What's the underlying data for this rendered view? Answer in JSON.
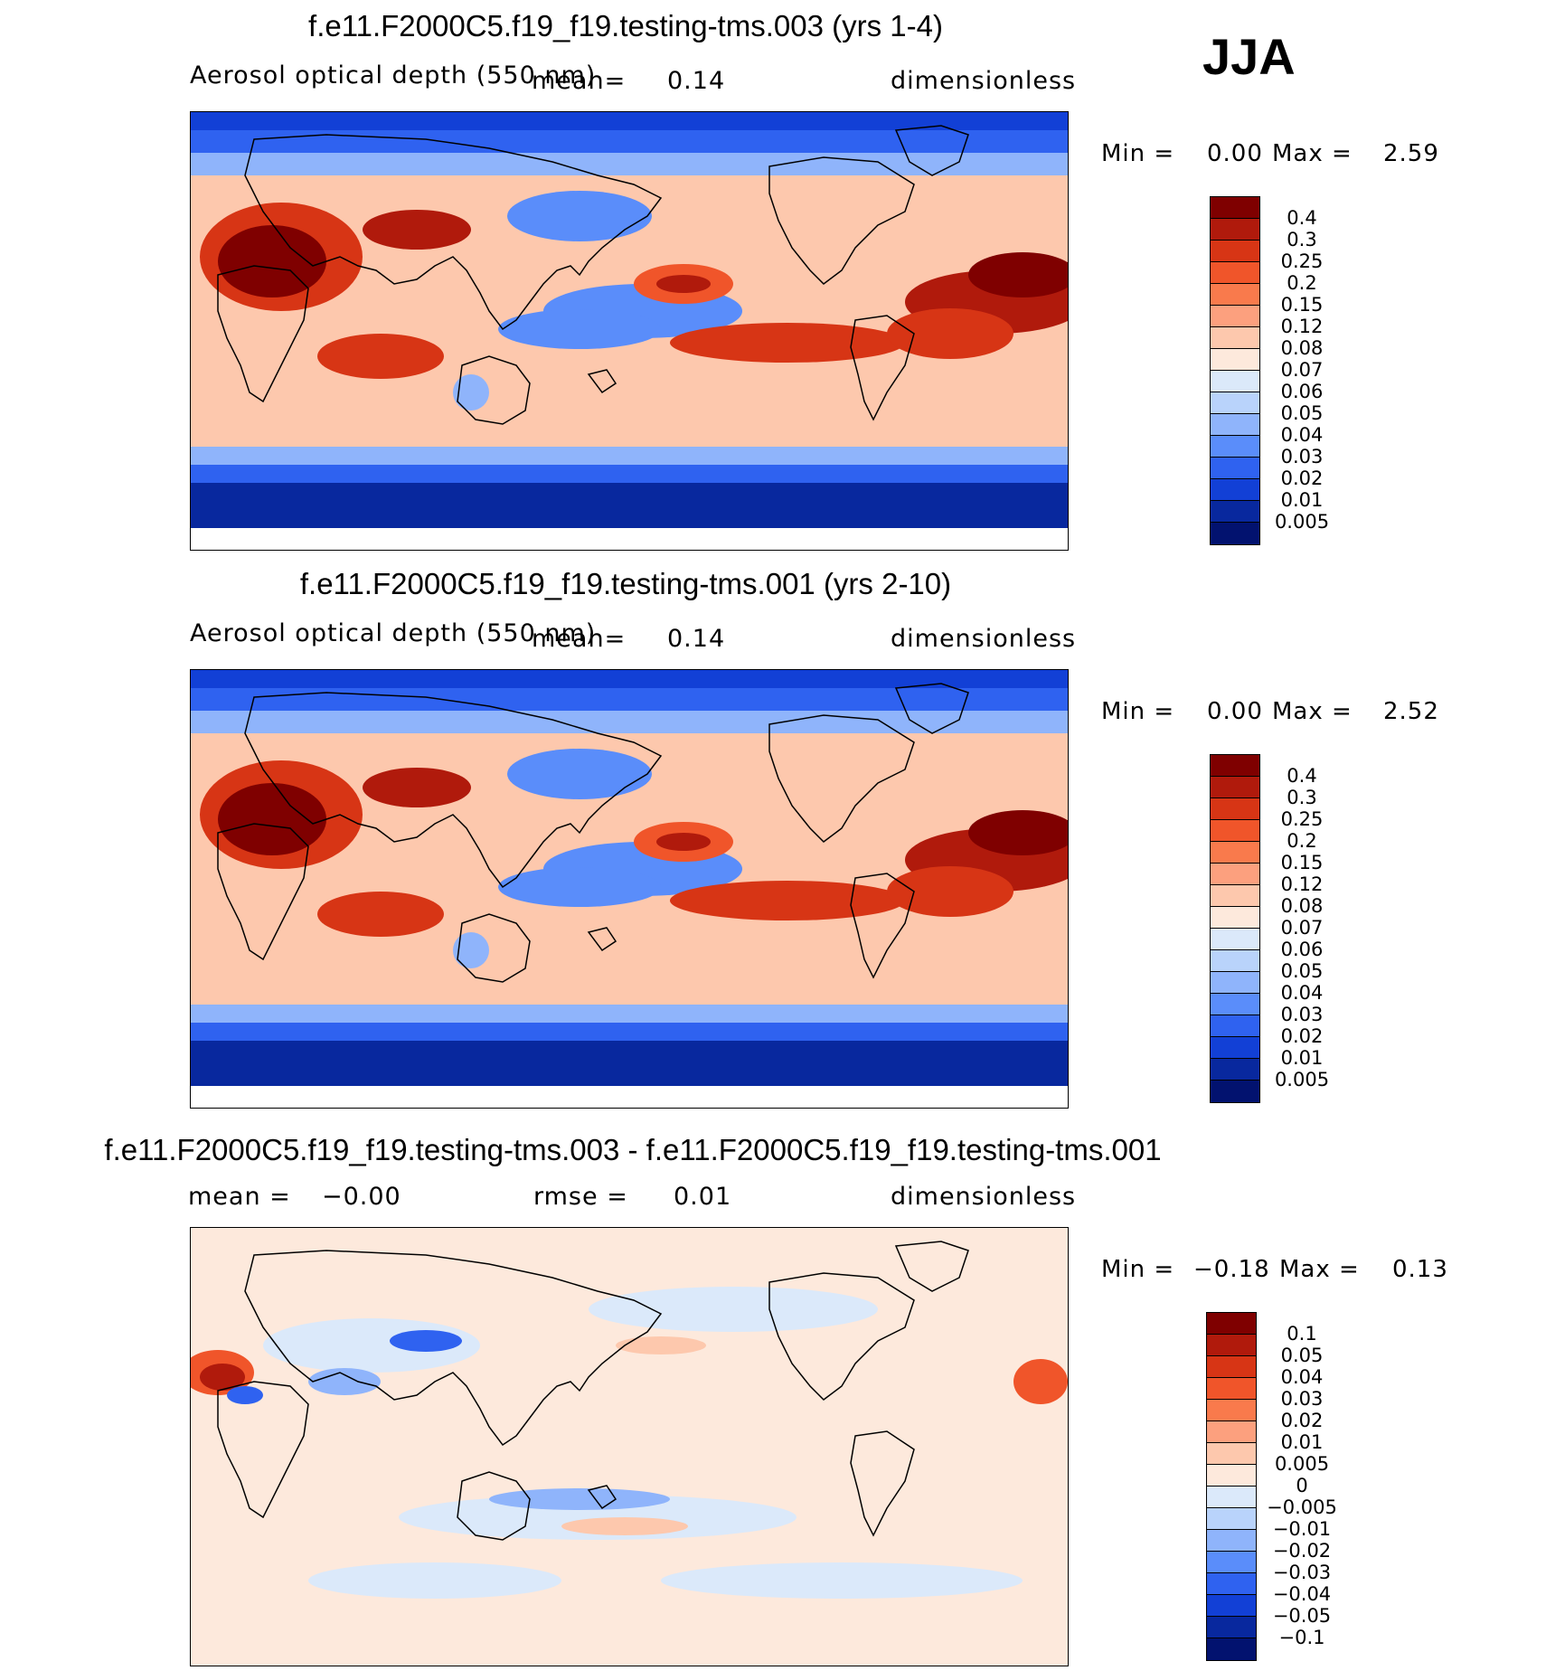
{
  "season": "JJA",
  "panels": [
    {
      "title": "f.e11.F2000C5.f19_f19.testing-tms.003 (yrs 1-4)",
      "variable": "Aerosol optical depth (550 nm)",
      "mean_label": "mean=",
      "mean_value": "0.14",
      "units": "dimensionless",
      "min_label": "Min =",
      "min_value": "0.00",
      "max_label": "Max =",
      "max_value": "2.59",
      "colorbar_labels": [
        "0.4",
        "0.3",
        "0.25",
        "0.2",
        "0.15",
        "0.12",
        "0.08",
        "0.07",
        "0.06",
        "0.05",
        "0.04",
        "0.03",
        "0.02",
        "0.01",
        "0.005"
      ],
      "colorbar_colors": [
        "#7f0000",
        "#b01a0c",
        "#d73515",
        "#f0552a",
        "#f97a4c",
        "#fca07e",
        "#fdc8ad",
        "#fde9dc",
        "#dbe9fa",
        "#b9d3fb",
        "#8fb4fb",
        "#5a8dfa",
        "#2f62f0",
        "#1240d6",
        "#08289e",
        "#02126f"
      ],
      "shading": "aod"
    },
    {
      "title": "f.e11.F2000C5.f19_f19.testing-tms.001 (yrs 2-10)",
      "variable": "Aerosol optical depth (550 nm)",
      "mean_label": "mean=",
      "mean_value": "0.14",
      "units": "dimensionless",
      "min_label": "Min =",
      "min_value": "0.00",
      "max_label": "Max =",
      "max_value": "2.52",
      "colorbar_labels": [
        "0.4",
        "0.3",
        "0.25",
        "0.2",
        "0.15",
        "0.12",
        "0.08",
        "0.07",
        "0.06",
        "0.05",
        "0.04",
        "0.03",
        "0.02",
        "0.01",
        "0.005"
      ],
      "colorbar_colors": [
        "#7f0000",
        "#b01a0c",
        "#d73515",
        "#f0552a",
        "#f97a4c",
        "#fca07e",
        "#fdc8ad",
        "#fde9dc",
        "#dbe9fa",
        "#b9d3fb",
        "#8fb4fb",
        "#5a8dfa",
        "#2f62f0",
        "#1240d6",
        "#08289e",
        "#02126f"
      ],
      "shading": "aod"
    },
    {
      "title": "f.e11.F2000C5.f19_f19.testing-tms.003 - f.e11.F2000C5.f19_f19.testing-tms.001",
      "mean_label": "mean =",
      "mean_value": "−0.00",
      "rmse_label": "rmse =",
      "rmse_value": "0.01",
      "units": "dimensionless",
      "min_label": "Min =",
      "min_value": "−0.18",
      "max_label": "Max =",
      "max_value": "0.13",
      "colorbar_labels": [
        "0.1",
        "0.05",
        "0.04",
        "0.03",
        "0.02",
        "0.01",
        "0.005",
        "0",
        "−0.005",
        "−0.01",
        "−0.02",
        "−0.03",
        "−0.04",
        "−0.05",
        "−0.1"
      ],
      "colorbar_colors": [
        "#7f0000",
        "#b01a0c",
        "#d73515",
        "#f0552a",
        "#f97a4c",
        "#fca07e",
        "#fdc8ad",
        "#fde9dc",
        "#dbe9fa",
        "#b9d3fb",
        "#8fb4fb",
        "#5a8dfa",
        "#2f62f0",
        "#1240d6",
        "#08289e",
        "#02126f"
      ],
      "shading": "diff"
    }
  ]
}
